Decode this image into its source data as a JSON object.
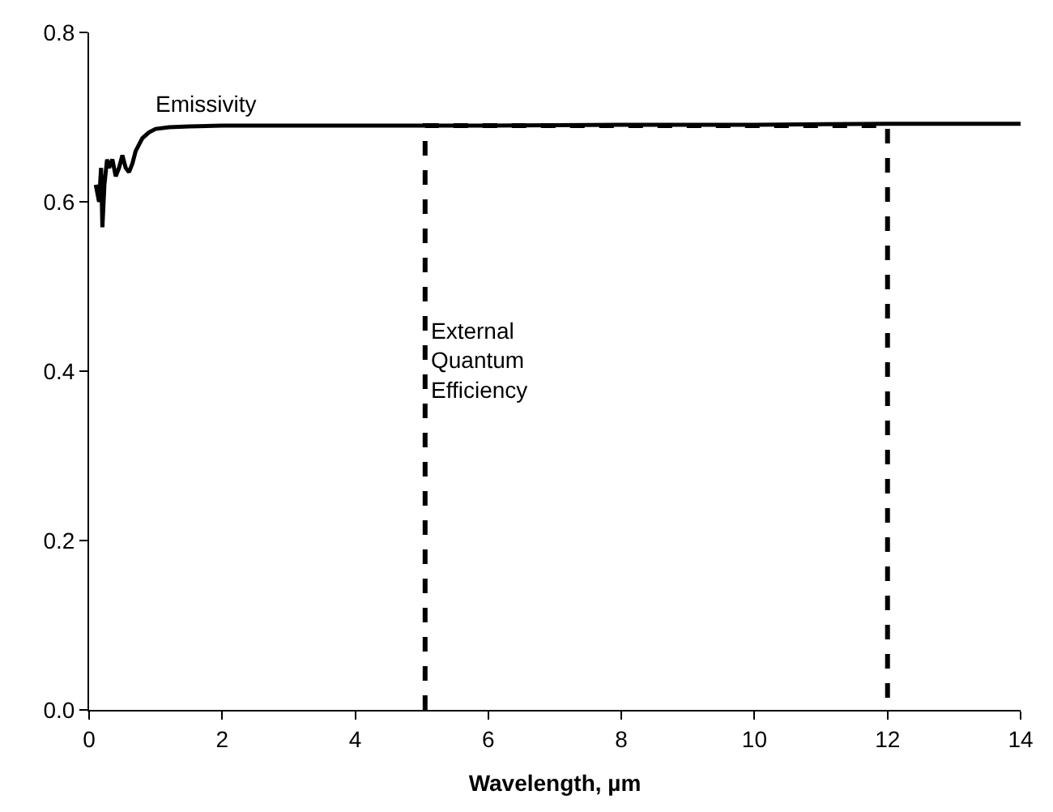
{
  "chart_data": {
    "type": "line",
    "xlabel": "Wavelength, µm",
    "xlim": [
      0,
      14
    ],
    "xticks": [
      0,
      2,
      4,
      6,
      8,
      10,
      12,
      14
    ],
    "ylim": [
      0,
      0.8
    ],
    "yticks": [
      {
        "value": 0,
        "label": "0.0"
      },
      0.2,
      0.4,
      0.6,
      0.8
    ],
    "legend": false,
    "marker": "none",
    "series": [
      {
        "name": "Emissivity",
        "color": "#000000",
        "line_style": "solid",
        "x": [
          0.1,
          0.15,
          0.18,
          0.2,
          0.23,
          0.27,
          0.3,
          0.35,
          0.4,
          0.45,
          0.5,
          0.55,
          0.6,
          0.65,
          0.7,
          0.8,
          0.9,
          1.0,
          1.2,
          1.5,
          2,
          4,
          6,
          8,
          10,
          12,
          14
        ],
        "values": [
          0.62,
          0.6,
          0.64,
          0.57,
          0.62,
          0.65,
          0.64,
          0.65,
          0.63,
          0.64,
          0.655,
          0.64,
          0.635,
          0.645,
          0.66,
          0.675,
          0.682,
          0.686,
          0.688,
          0.689,
          0.69,
          0.69,
          0.69,
          0.691,
          0.691,
          0.692,
          0.692
        ]
      },
      {
        "name": "External Quantum Efficiency",
        "color": "#000000",
        "line_style": "dashed",
        "x": [
          5.05,
          5.05,
          12,
          12
        ],
        "values": [
          0,
          0.69,
          0.69,
          0
        ]
      }
    ]
  }
}
